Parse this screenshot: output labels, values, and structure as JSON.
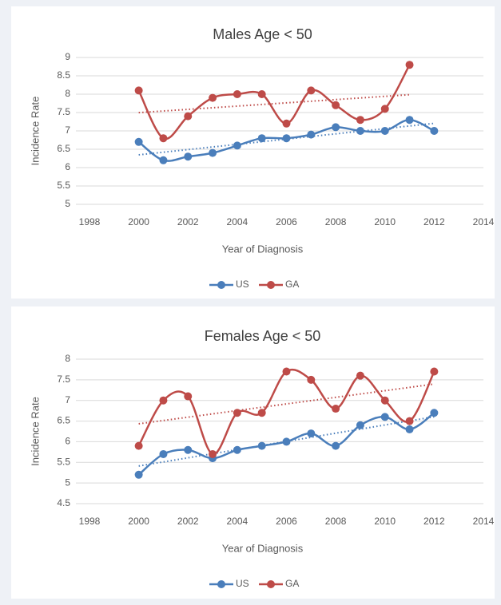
{
  "chart_data": [
    {
      "type": "line",
      "title": "Males Age < 50",
      "x_label": "Year of Diagnosis",
      "y_label": "Incidence Rate",
      "x": [
        2000,
        2001,
        2002,
        2003,
        2004,
        2005,
        2006,
        2007,
        2008,
        2009,
        2010,
        2011,
        2012
      ],
      "series": [
        {
          "name": "US",
          "color": "#4a7ebb",
          "values": [
            6.7,
            6.2,
            6.3,
            6.4,
            6.6,
            6.8,
            6.8,
            6.9,
            7.1,
            7.0,
            7.0,
            7.3,
            7.0
          ]
        },
        {
          "name": "GA",
          "color": "#be4b48",
          "values": [
            8.1,
            6.8,
            7.4,
            7.9,
            8.0,
            8.0,
            7.2,
            8.1,
            7.7,
            7.3,
            7.6,
            8.8,
            null
          ]
        }
      ],
      "xlim": [
        1998,
        2014
      ],
      "xticks": [
        1998,
        2000,
        2002,
        2004,
        2006,
        2008,
        2010,
        2012,
        2014
      ],
      "ylim": [
        5,
        9
      ],
      "yticks": [
        5,
        5.5,
        6,
        6.5,
        7,
        7.5,
        8,
        8.5,
        9
      ],
      "grid": true,
      "smooth": true,
      "trendline": true,
      "legend": "bottom"
    },
    {
      "type": "line",
      "title": "Females Age < 50",
      "x_label": "Year of Diagnosis",
      "y_label": "Incidence Rate",
      "x": [
        2000,
        2001,
        2002,
        2003,
        2004,
        2005,
        2006,
        2007,
        2008,
        2009,
        2010,
        2011,
        2012
      ],
      "series": [
        {
          "name": "US",
          "color": "#4a7ebb",
          "values": [
            5.2,
            5.7,
            5.8,
            5.6,
            5.8,
            5.9,
            6.0,
            6.2,
            5.9,
            6.4,
            6.6,
            6.3,
            6.7
          ]
        },
        {
          "name": "GA",
          "color": "#be4b48",
          "values": [
            5.9,
            7.0,
            7.1,
            5.7,
            6.7,
            6.7,
            7.7,
            7.5,
            6.8,
            7.6,
            7.0,
            6.5,
            7.7
          ]
        }
      ],
      "xlim": [
        1998,
        2014
      ],
      "xticks": [
        1998,
        2000,
        2002,
        2004,
        2006,
        2008,
        2010,
        2012,
        2014
      ],
      "ylim": [
        4.5,
        8
      ],
      "yticks": [
        4.5,
        5,
        5.5,
        6,
        6.5,
        7,
        7.5,
        8
      ],
      "grid": true,
      "smooth": true,
      "trendline": true,
      "legend": "bottom"
    }
  ]
}
